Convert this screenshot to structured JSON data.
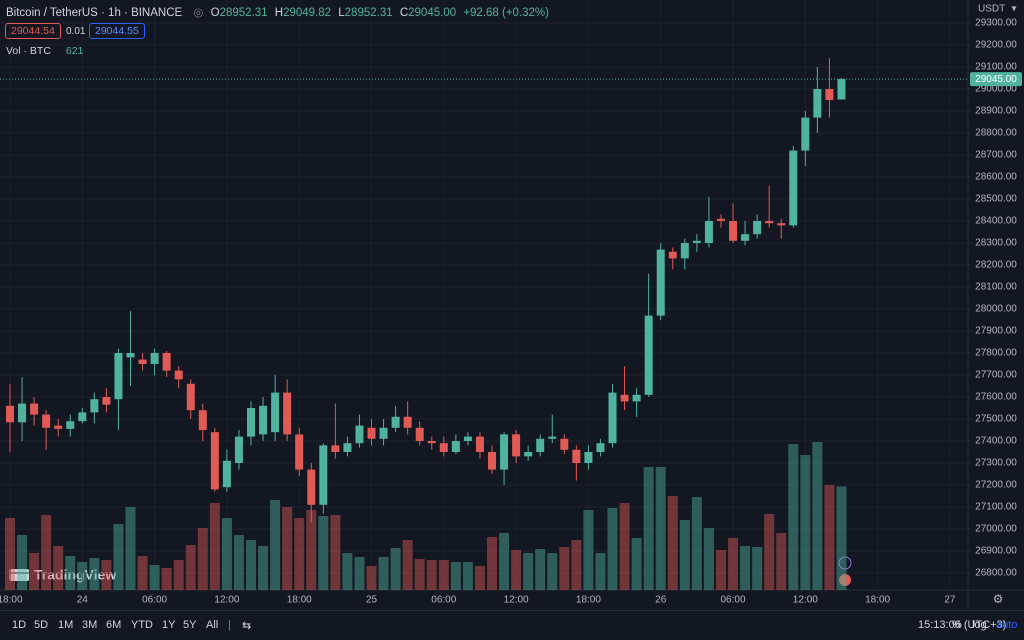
{
  "header": {
    "symbol": "Bitcoin / TetherUS · 1h · BINANCE",
    "ohlc": [
      {
        "label": "O",
        "value": "28952.31"
      },
      {
        "label": "H",
        "value": "29049.82"
      },
      {
        "label": "L",
        "value": "28952.31"
      },
      {
        "label": "C",
        "value": "29045.00"
      }
    ],
    "change": "+92.68 (+0.32%)",
    "sell": "29044.54",
    "spread": "0.01",
    "buy": "29044.55",
    "volume_label": "Vol · BTC",
    "volume_value": "621"
  },
  "currency": "USDT",
  "branding": "TradingView",
  "chart_data": {
    "type": "candlestick",
    "grid": true,
    "up_color": "#4fb3a0",
    "down_color": "#e15a55",
    "open": [
      27560,
      27485,
      27570,
      27520,
      27470,
      27455,
      27490,
      27530,
      27600,
      27590,
      27780,
      27770,
      27750,
      27800,
      27720,
      27660,
      27540,
      27440,
      27190,
      27300,
      27420,
      27430,
      27440,
      27620,
      27430,
      27270,
      27110,
      27380,
      27350,
      27390,
      27460,
      27410,
      27460,
      27510,
      27460,
      27400,
      27390,
      27350,
      27400,
      27420,
      27350,
      27270,
      27430,
      27330,
      27350,
      27410,
      27410,
      27360,
      27300,
      27350,
      27390,
      27610,
      27580,
      27610,
      27970,
      28260,
      28230,
      28300,
      28300,
      28410,
      28400,
      28310,
      28340,
      28400,
      28390,
      28380,
      28720,
      28870,
      29000,
      28952.31
    ],
    "high": [
      27660,
      27690,
      27600,
      27540,
      27500,
      27520,
      27550,
      27620,
      27640,
      27820,
      27990,
      27800,
      27820,
      27810,
      27740,
      27680,
      27570,
      27460,
      27360,
      27450,
      27580,
      27600,
      27700,
      27680,
      27460,
      27300,
      27390,
      27570,
      27420,
      27520,
      27500,
      27500,
      27560,
      27580,
      27490,
      27420,
      27420,
      27430,
      27440,
      27440,
      27380,
      27440,
      27450,
      27380,
      27430,
      27520,
      27430,
      27380,
      27380,
      27410,
      27660,
      27740,
      27640,
      28160,
      28300,
      28280,
      28320,
      28340,
      28510,
      28430,
      28480,
      28400,
      28430,
      28560,
      28410,
      28740,
      28900,
      29100,
      29140,
      29049.82
    ],
    "low": [
      27350,
      27400,
      27470,
      27360,
      27420,
      27420,
      27480,
      27480,
      27530,
      27450,
      27650,
      27720,
      27700,
      27690,
      27640,
      27500,
      27400,
      27170,
      27170,
      27270,
      27380,
      27400,
      27400,
      27400,
      27240,
      27030,
      27070,
      27320,
      27330,
      27370,
      27380,
      27380,
      27440,
      27430,
      27380,
      27360,
      27330,
      27340,
      27380,
      27320,
      27250,
      27200,
      27300,
      27310,
      27330,
      27390,
      27340,
      27220,
      27270,
      27330,
      27370,
      27540,
      27510,
      27600,
      27950,
      28180,
      28180,
      28260,
      28280,
      28370,
      28300,
      28290,
      28320,
      28370,
      28320,
      28370,
      28650,
      28800,
      28870,
      28952.31
    ],
    "close": [
      27485,
      27570,
      27520,
      27460,
      27455,
      27490,
      27530,
      27590,
      27565,
      27800,
      27800,
      27750,
      27800,
      27720,
      27680,
      27540,
      27450,
      27180,
      27310,
      27420,
      27550,
      27560,
      27620,
      27430,
      27270,
      27110,
      27380,
      27350,
      27390,
      27470,
      27410,
      27460,
      27510,
      27460,
      27400,
      27390,
      27350,
      27400,
      27420,
      27350,
      27270,
      27430,
      27330,
      27350,
      27410,
      27420,
      27360,
      27300,
      27350,
      27390,
      27620,
      27580,
      27610,
      27970,
      28270,
      28230,
      28300,
      28310,
      28400,
      28400,
      28310,
      28340,
      28400,
      28390,
      28380,
      28720,
      28870,
      29000,
      28950,
      29045
    ],
    "volume": [
      432,
      330,
      222,
      450,
      264,
      204,
      168,
      192,
      180,
      396,
      498,
      204,
      150,
      132,
      180,
      270,
      372,
      522,
      432,
      330,
      300,
      264,
      540,
      498,
      432,
      480,
      444,
      450,
      222,
      198,
      144,
      198,
      252,
      300,
      186,
      180,
      180,
      168,
      168,
      144,
      318,
      342,
      240,
      222,
      246,
      222,
      258,
      300,
      480,
      222,
      492,
      522,
      312,
      738,
      738,
      564,
      420,
      558,
      372,
      240,
      312,
      264,
      258,
      456,
      342,
      876,
      810,
      888,
      630,
      621
    ],
    "ylim": [
      26722.7,
      29404.5
    ],
    "volume_ylim": [
      0,
      3540
    ],
    "xlim": [
      -0.83,
      79.5
    ],
    "yticks": [
      {
        "value": 26800,
        "label": "26800.00"
      },
      {
        "value": 26900,
        "label": "26900.00"
      },
      {
        "value": 27000,
        "label": "27000.00"
      },
      {
        "value": 27100,
        "label": "27100.00"
      },
      {
        "value": 27200,
        "label": "27200.00"
      },
      {
        "value": 27300,
        "label": "27300.00"
      },
      {
        "value": 27400,
        "label": "27400.00"
      },
      {
        "value": 27500,
        "label": "27500.00"
      },
      {
        "value": 27600,
        "label": "27600.00"
      },
      {
        "value": 27700,
        "label": "27700.00"
      },
      {
        "value": 27800,
        "label": "27800.00"
      },
      {
        "value": 27900,
        "label": "27900.00"
      },
      {
        "value": 28000,
        "label": "28000.00"
      },
      {
        "value": 28100,
        "label": "28100.00"
      },
      {
        "value": 28200,
        "label": "28200.00"
      },
      {
        "value": 28300,
        "label": "28300.00"
      },
      {
        "value": 28400,
        "label": "28400.00"
      },
      {
        "value": 28500,
        "label": "28500.00"
      },
      {
        "value": 28600,
        "label": "28600.00"
      },
      {
        "value": 28700,
        "label": "28700.00"
      },
      {
        "value": 28800,
        "label": "28800.00"
      },
      {
        "value": 28900,
        "label": "28900.00"
      },
      {
        "value": 29000,
        "label": "29000.00"
      },
      {
        "value": 29100,
        "label": "29100.00"
      },
      {
        "value": 29200,
        "label": "29200.00"
      },
      {
        "value": 29300,
        "label": "29300.00"
      }
    ],
    "xticks": [
      {
        "value": 0,
        "label": "18:00"
      },
      {
        "value": 6,
        "label": "24"
      },
      {
        "value": 12,
        "label": "06:00"
      },
      {
        "value": 18,
        "label": "12:00"
      },
      {
        "value": 24,
        "label": "18:00"
      },
      {
        "value": 30,
        "label": "25"
      },
      {
        "value": 36,
        "label": "06:00"
      },
      {
        "value": 42,
        "label": "12:00"
      },
      {
        "value": 48,
        "label": "18:00"
      },
      {
        "value": 54,
        "label": "26"
      },
      {
        "value": 60,
        "label": "06:00"
      },
      {
        "value": 66,
        "label": "12:00"
      },
      {
        "value": 72,
        "label": "18:00"
      },
      {
        "value": 78,
        "label": "27"
      }
    ],
    "last_price_label": "29045.00"
  },
  "toolbar": {
    "ranges": [
      "1D",
      "5D",
      "1M",
      "3M",
      "6M",
      "YTD",
      "1Y",
      "5Y",
      "All"
    ],
    "clock": "15:13:06 (UTC+3)",
    "percent": "%",
    "log": "log",
    "auto": "auto"
  }
}
